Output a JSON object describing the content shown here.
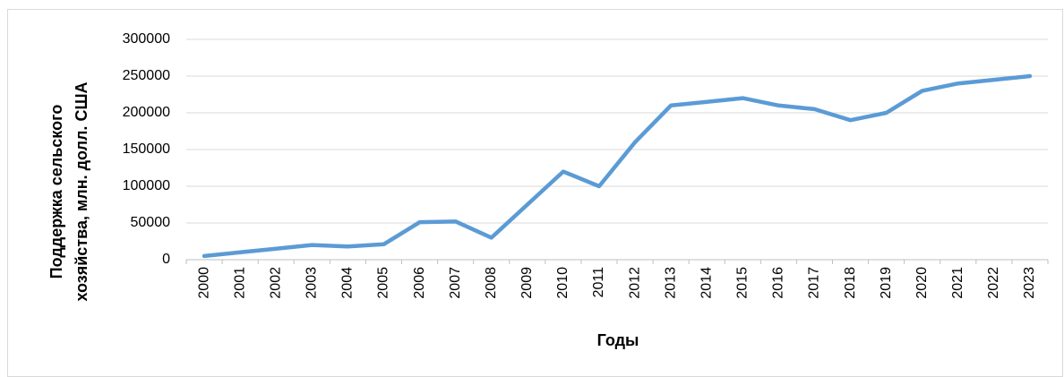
{
  "chart_data": {
    "type": "line",
    "y_label": [
      "Поддержка сельского",
      "хозяйства, млн. долл. США"
    ],
    "x_label": "Годы",
    "categories": [
      "2000",
      "2001",
      "2002",
      "2003",
      "2004",
      "2005",
      "2006",
      "2007",
      "2008",
      "2009",
      "2010",
      "2011",
      "2012",
      "2013",
      "2014",
      "2015",
      "2016",
      "2017",
      "2018",
      "2019",
      "2020",
      "2021",
      "2022",
      "2023"
    ],
    "values": [
      5000,
      10000,
      15000,
      20000,
      18000,
      21000,
      51000,
      52000,
      30000,
      75000,
      120000,
      100000,
      160000,
      210000,
      215000,
      220000,
      210000,
      205000,
      190000,
      200000,
      230000,
      240000,
      245000,
      250000
    ],
    "color": "#5b9bd5",
    "ylim": [
      0,
      300000
    ],
    "yticks": [
      0,
      50000,
      100000,
      150000,
      200000,
      250000,
      300000
    ],
    "grid": true
  }
}
